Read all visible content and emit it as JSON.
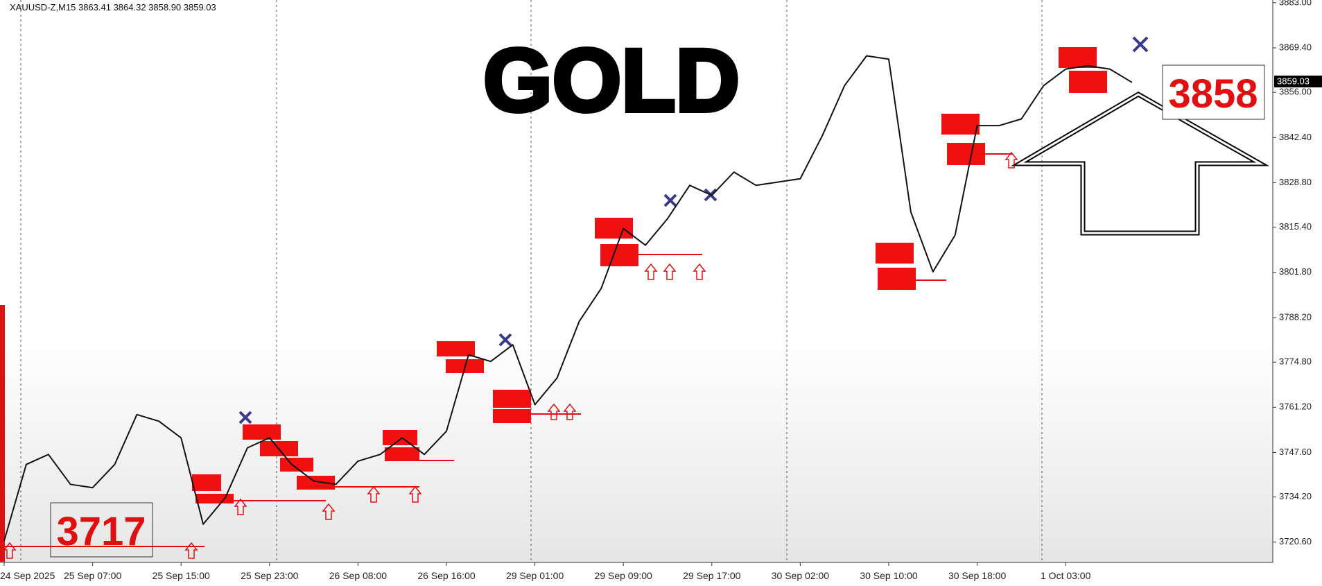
{
  "chart_data": {
    "type": "line",
    "header": "XAUUSD-Z,M15  3863.41 3864.32 3858.90 3859.03",
    "title": "GOLD",
    "annotations": [
      "3717",
      "3858"
    ],
    "current_price": "3859.03",
    "categories": [
      "24 Sep 2025",
      null,
      null,
      null,
      "25 Sep 07:00",
      null,
      null,
      null,
      "25 Sep 15:00",
      null,
      null,
      null,
      "25 Sep 23:00",
      null,
      null,
      null,
      "26 Sep 08:00",
      null,
      null,
      null,
      "26 Sep 16:00",
      null,
      null,
      null,
      "29 Sep 01:00",
      null,
      null,
      null,
      "29 Sep 09:00",
      null,
      null,
      null,
      "29 Sep 17:00",
      null,
      null,
      null,
      "30 Sep 02:00",
      null,
      null,
      null,
      "30 Sep 10:00",
      null,
      null,
      null,
      "30 Sep 18:00",
      null,
      null,
      null,
      "1 Oct 03:00",
      null,
      null,
      null
    ],
    "series": [
      {
        "name": "XAUUSD-Z",
        "color": "#111111",
        "values": [
          3721,
          3744,
          3747,
          3738,
          3737,
          3744,
          3759,
          3757,
          3752,
          3726,
          3734,
          3749,
          3752,
          3744,
          3739,
          3738,
          3745,
          3747,
          3752,
          3747,
          3754,
          3777,
          3775,
          3780,
          3762,
          3770,
          3787,
          3797,
          3815,
          3810,
          3818,
          3828,
          3825,
          3832,
          3828,
          3829,
          3830,
          3843,
          3858,
          3867,
          3866,
          3820,
          3802,
          3813,
          3846,
          3846,
          3848,
          3858,
          3863,
          3864,
          3863,
          3859
        ]
      }
    ],
    "ylim": [
      3714.5,
      3883.8
    ],
    "yticks": [
      {
        "value": 3883,
        "label": "3883.00"
      },
      {
        "value": 3869.4,
        "label": "3869.40"
      },
      {
        "value": 3856,
        "label": "3856.00"
      },
      {
        "value": 3842.4,
        "label": "3842.40"
      },
      {
        "value": 3828.8,
        "label": "3828.80"
      },
      {
        "value": 3815.4,
        "label": "3815.40"
      },
      {
        "value": 3801.8,
        "label": "3801.80"
      },
      {
        "value": 3788.2,
        "label": "3788.20"
      },
      {
        "value": 3774.8,
        "label": "3774.80"
      },
      {
        "value": 3761.2,
        "label": "3761.20"
      },
      {
        "value": 3747.6,
        "label": "3747.60"
      },
      {
        "value": 3734.2,
        "label": "3734.20"
      },
      {
        "value": 3720.6,
        "label": "3720.60"
      }
    ],
    "grid": false
  }
}
